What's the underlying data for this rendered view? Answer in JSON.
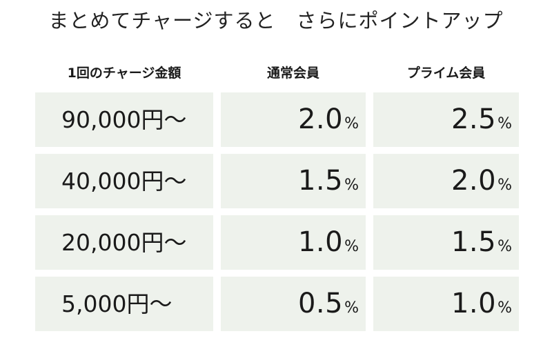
{
  "title": "まとめてチャージすると　さらにポイントアップ",
  "headers": {
    "amount": "1回のチャージ金額",
    "regular": "通常会員",
    "prime": "プライム会員"
  },
  "unit": "%",
  "rows": [
    {
      "amount": "90,000円～",
      "regular": "2.0",
      "prime": "2.5"
    },
    {
      "amount": "40,000円～",
      "regular": "1.5",
      "prime": "2.0"
    },
    {
      "amount": "20,000円～",
      "regular": "1.0",
      "prime": "1.5"
    },
    {
      "amount": "5,000円～",
      "regular": "0.5",
      "prime": "1.0"
    }
  ],
  "colors": {
    "cell_background": "#eef2ec",
    "text": "#1a1a1a"
  }
}
